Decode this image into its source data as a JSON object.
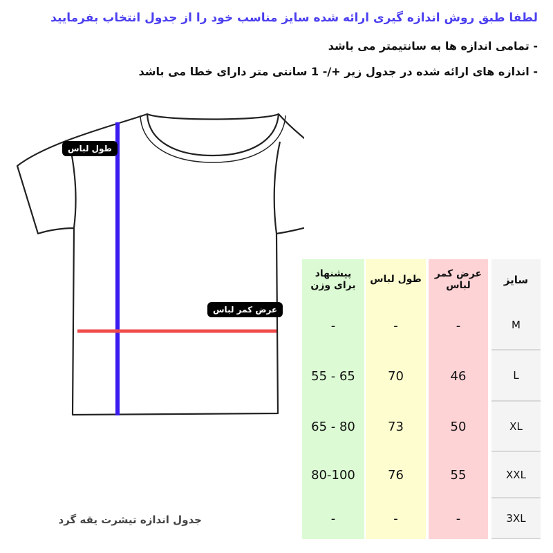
{
  "instructions": {
    "title": "لطفا طبق روش اندازه گیری ارائه شده سایز مناسب خود را از جدول انتخاب بفرمایید",
    "note_1": "- تمامی اندازه ها به سانتیمتر می باشد",
    "note_2": "- اندازه های ارائه شده در جدول زیر +/- 1 سانتی متر دارای خطا می باشد"
  },
  "diagram": {
    "length_label": "طول لباس",
    "width_label": "عرض کمر لباس",
    "length_line_color": "#3a1cf0",
    "width_line_color": "#f04b4b"
  },
  "table": {
    "columns": [
      {
        "header": "سایز",
        "color": "#f4f4f4",
        "values": [
          "M",
          "L",
          "XL",
          "XXL",
          "3XL"
        ]
      },
      {
        "header": "عرض کمر لباس",
        "color": "#fed3d6",
        "values": [
          "-",
          "46",
          "50",
          "55",
          "-"
        ]
      },
      {
        "header": "طول لباس",
        "color": "#fdfdcf",
        "values": [
          "-",
          "70",
          "73",
          "76",
          "-"
        ]
      },
      {
        "header": "پیشنهاد برای وزن",
        "color": "#dcfbd4",
        "values": [
          "-",
          "55 - 65",
          "65 - 80",
          "80-100",
          "-"
        ]
      }
    ]
  },
  "caption": "جدول اندازه تیشرت یقه گرد"
}
